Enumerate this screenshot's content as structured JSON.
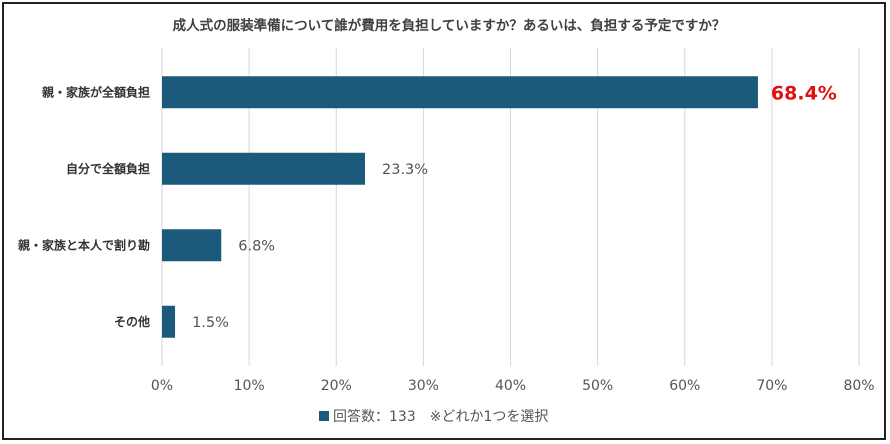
{
  "chart_data": {
    "type": "bar",
    "orientation": "horizontal",
    "title": "成人式の服装準備について誰が費用を負担していますか？あるいは、負担する予定ですか？",
    "categories": [
      "親・家族が全額負担",
      "自分で全額負担",
      "親・家族と本人で割り勘",
      "その他"
    ],
    "values": [
      68.4,
      23.3,
      6.8,
      1.5
    ],
    "data_labels": [
      "68.4%",
      "23.3%",
      "6.8%",
      "1.5%"
    ],
    "x_ticks": [
      "0%",
      "10%",
      "20%",
      "30%",
      "40%",
      "50%",
      "60%",
      "70%",
      "80%"
    ],
    "xlim": [
      0,
      80
    ],
    "grid": true,
    "legend": "回答数：133　※どれか1つを選択",
    "legend_position": "bottom",
    "colors": {
      "bar": "#1b5a7a",
      "highlight_label": "#e01010",
      "grid": "#d6d6d6"
    }
  }
}
